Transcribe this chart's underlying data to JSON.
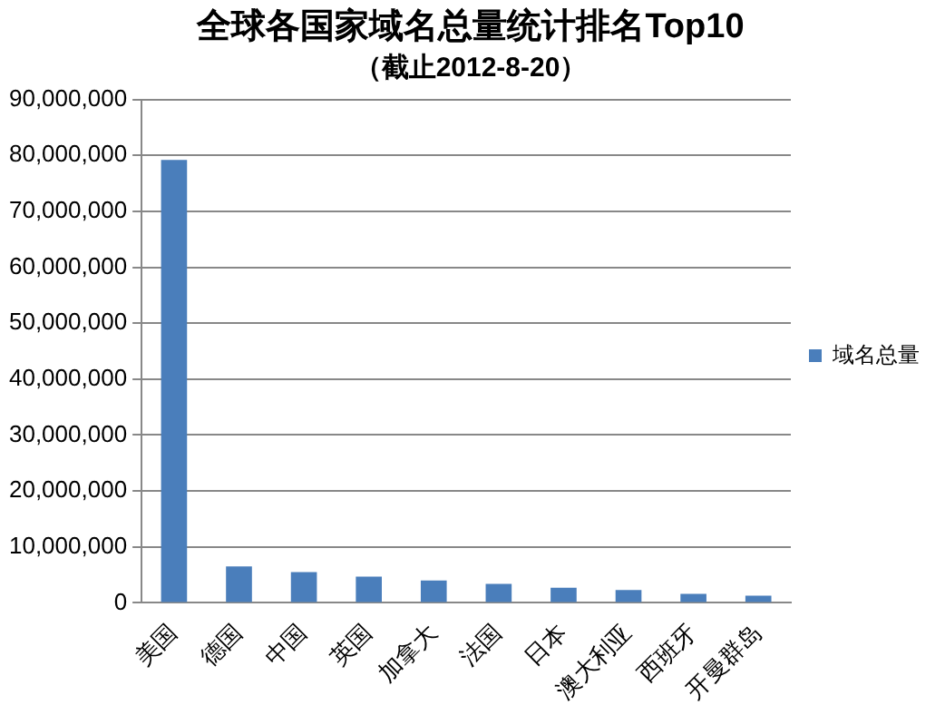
{
  "chart_data": {
    "type": "bar",
    "title": "全球各国家域名总量统计排名Top10",
    "subtitle": "（截止2012-8-20）",
    "categories": [
      "美国",
      "德国",
      "中国",
      "英国",
      "加拿大",
      "法国",
      "日本",
      "澳大利亚",
      "西班牙",
      "开曼群岛"
    ],
    "series": [
      {
        "name": "域名总量",
        "color": "#4a7ebb",
        "values": [
          79200000,
          6500000,
          5500000,
          4700000,
          4000000,
          3400000,
          2700000,
          2300000,
          1600000,
          1300000
        ]
      }
    ],
    "ylim": [
      0,
      90000000
    ],
    "yticks": [
      0,
      {
        "value": 10000000,
        "label": "10,000,000"
      },
      {
        "value": 20000000,
        "label": "20,000,000"
      },
      {
        "value": 30000000,
        "label": "30,000,000"
      },
      {
        "value": 40000000,
        "label": "40,000,000"
      },
      {
        "value": 50000000,
        "label": "50,000,000"
      },
      {
        "value": 60000000,
        "label": "60,000,000"
      },
      {
        "value": 70000000,
        "label": "70,000,000"
      },
      {
        "value": 80000000,
        "label": "80,000,000"
      },
      {
        "value": 90000000,
        "label": "90,000,000"
      }
    ],
    "grid": "y",
    "legend": "right"
  }
}
